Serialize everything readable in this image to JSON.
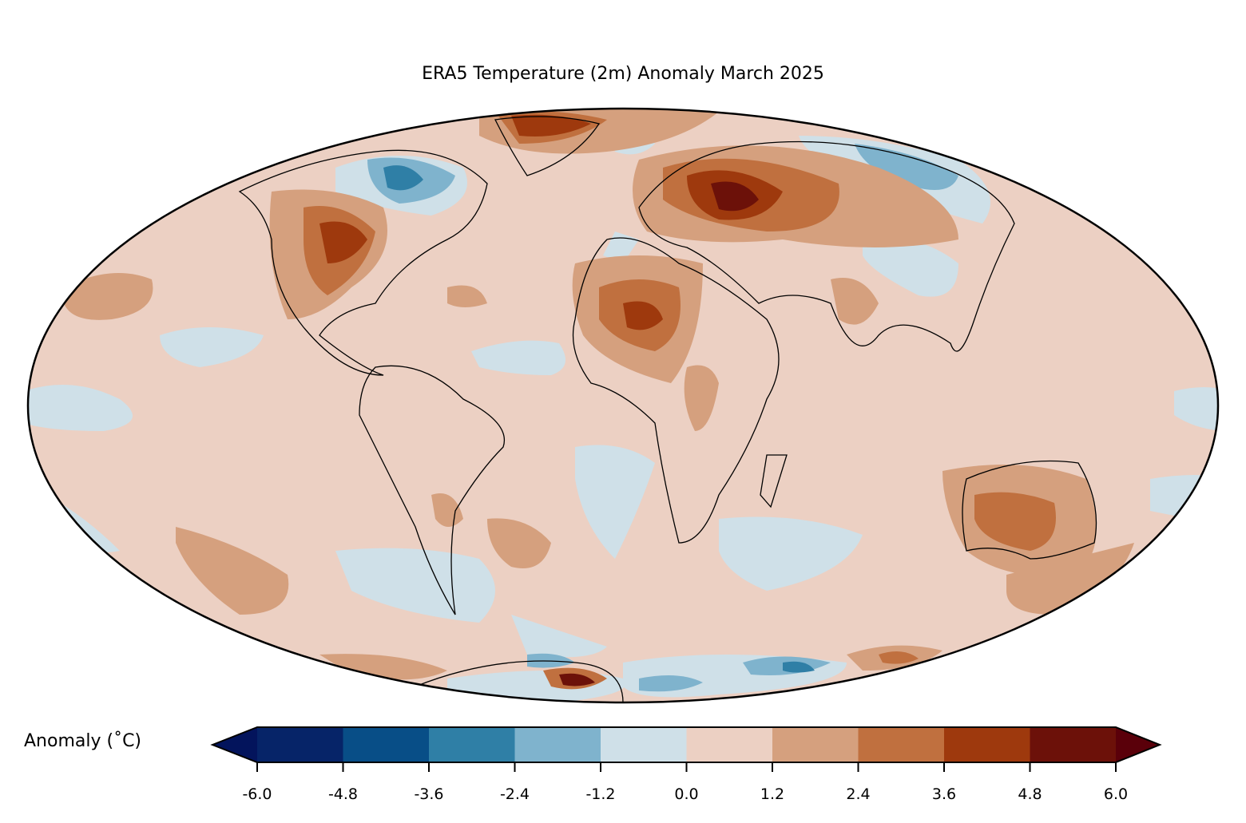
{
  "title": "ERA5 Temperature (2m) Anomaly March 2025",
  "colorbar": {
    "label": "Anomaly (˚C)",
    "ticks": [
      "-6.0",
      "-4.8",
      "-3.6",
      "-2.4",
      "-1.2",
      "0.0",
      "1.2",
      "2.4",
      "3.6",
      "4.8",
      "6.0"
    ],
    "extend_min_color": "#03145c",
    "extend_max_color": "#5a000a",
    "colors": [
      "#062468",
      "#084e87",
      "#2f7fa6",
      "#7fb3cd",
      "#cfe0e8",
      "#ecd0c3",
      "#d5a07e",
      "#c0703f",
      "#9e390d",
      "#6c1109"
    ]
  },
  "map": {
    "projection": "Mollweide",
    "background_color": "#ecd0c3"
  }
}
